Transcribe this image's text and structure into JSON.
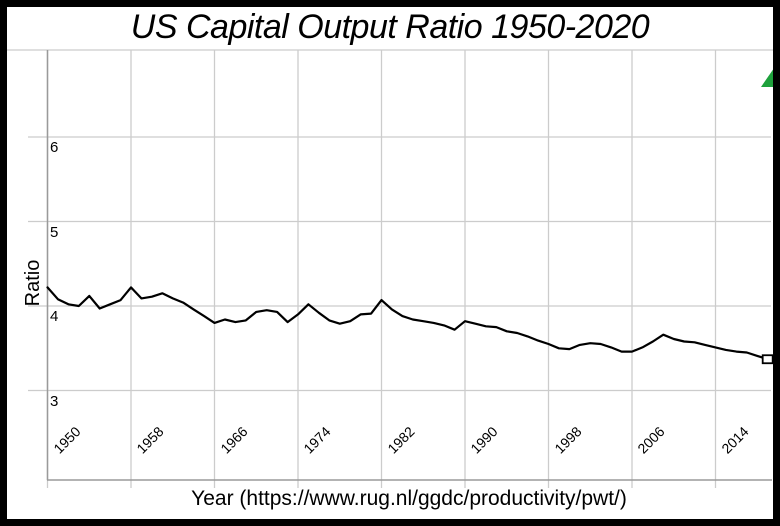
{
  "title": "US Capital Output Ratio 1950-2020",
  "x_axis_title": "Year (https://www.rug.nl/ggdc/productivity/pwt/)",
  "y_axis_title": "Ratio",
  "icons": {
    "top_right": "green-up-right-arrow-icon"
  },
  "colors": {
    "line": "#000000",
    "grid": "#cccccc",
    "axis": "#9a9a9a",
    "arrow_green": "#1ea13c",
    "border": "#000000",
    "background": "#ffffff",
    "marker_fill": "#ffffff"
  },
  "chart_data": {
    "type": "line",
    "title": "US Capital Output Ratio 1950-2020",
    "xlabel": "Year (https://www.rug.nl/ggdc/productivity/pwt/)",
    "ylabel": "Ratio",
    "x_ticks": [
      1950,
      1958,
      1966,
      1974,
      1982,
      1990,
      1998,
      2006,
      2014
    ],
    "y_ticks": [
      3,
      4,
      5,
      6
    ],
    "ylim": [
      2,
      7
    ],
    "xlim": [
      1950,
      2019
    ],
    "grid": true,
    "legend": "none",
    "series_color": "#000000",
    "end_marker": "open-square",
    "x": [
      1950,
      1951,
      1952,
      1953,
      1954,
      1955,
      1956,
      1957,
      1958,
      1959,
      1960,
      1961,
      1962,
      1963,
      1964,
      1965,
      1966,
      1967,
      1968,
      1969,
      1970,
      1971,
      1972,
      1973,
      1974,
      1975,
      1976,
      1977,
      1978,
      1979,
      1980,
      1981,
      1982,
      1983,
      1984,
      1985,
      1986,
      1987,
      1988,
      1989,
      1990,
      1991,
      1992,
      1993,
      1994,
      1995,
      1996,
      1997,
      1998,
      1999,
      2000,
      2001,
      2002,
      2003,
      2004,
      2005,
      2006,
      2007,
      2008,
      2009,
      2010,
      2011,
      2012,
      2013,
      2014,
      2015,
      2016,
      2017,
      2018,
      2019
    ],
    "values": [
      4.22,
      4.08,
      4.02,
      4.0,
      4.12,
      3.97,
      4.02,
      4.07,
      4.22,
      4.09,
      4.11,
      4.15,
      4.09,
      4.04,
      3.96,
      3.88,
      3.8,
      3.84,
      3.81,
      3.83,
      3.93,
      3.95,
      3.93,
      3.81,
      3.9,
      4.02,
      3.92,
      3.83,
      3.79,
      3.82,
      3.9,
      3.91,
      4.07,
      3.96,
      3.88,
      3.84,
      3.82,
      3.8,
      3.77,
      3.72,
      3.82,
      3.79,
      3.76,
      3.75,
      3.7,
      3.68,
      3.64,
      3.59,
      3.55,
      3.5,
      3.49,
      3.54,
      3.56,
      3.55,
      3.51,
      3.46,
      3.46,
      3.51,
      3.58,
      3.66,
      3.61,
      3.58,
      3.57,
      3.54,
      3.51,
      3.48,
      3.46,
      3.45,
      3.41,
      3.37
    ]
  }
}
